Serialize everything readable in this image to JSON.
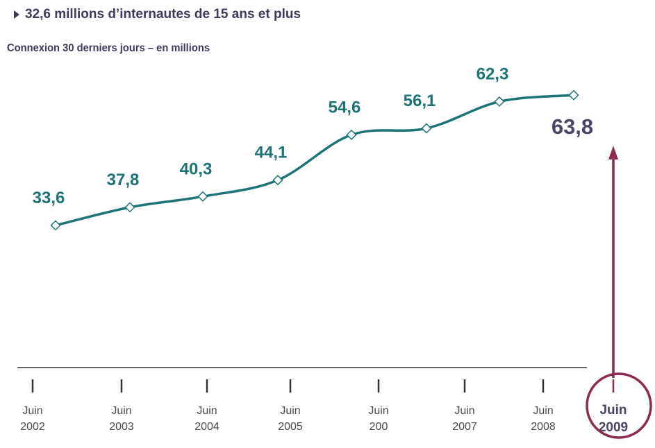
{
  "header": {
    "title": "32,6 millions d’internautes de 15 ans et plus",
    "subtitle": "Connexion 30 derniers jours – en millions"
  },
  "colors": {
    "line": "#1e7377",
    "value_label": "#1e7377",
    "highlight_value": "#4a4766",
    "highlight": "#8e2a52",
    "axis": "#333333",
    "tick_label": "#4a4a4a",
    "title": "#3d3a5c"
  },
  "chart_data": {
    "type": "line",
    "title": "32,6 millions d’internautes de 15 ans et plus",
    "subtitle": "Connexion 30 derniers jours – en millions",
    "ylabel": "",
    "grid": false,
    "series": [
      {
        "values": [
          33.6,
          37.8,
          40.3,
          44.1,
          54.6,
          56.1,
          62.3,
          63.8
        ],
        "value_labels": [
          "33,6",
          "37,8",
          "40,3",
          "44,1",
          "54,6",
          "56,1",
          "62,3",
          "63,8"
        ]
      }
    ],
    "x_ticks": [
      [
        "Juin",
        "2002"
      ],
      [
        "Juin",
        "2003"
      ],
      [
        "Juin",
        "2004"
      ],
      [
        "Juin",
        "2005"
      ],
      [
        "Juin",
        "200"
      ],
      [
        "Juin",
        "2007"
      ],
      [
        "Juin",
        "2008"
      ],
      [
        "Juin",
        "2009"
      ]
    ],
    "highlight_index": 7
  }
}
